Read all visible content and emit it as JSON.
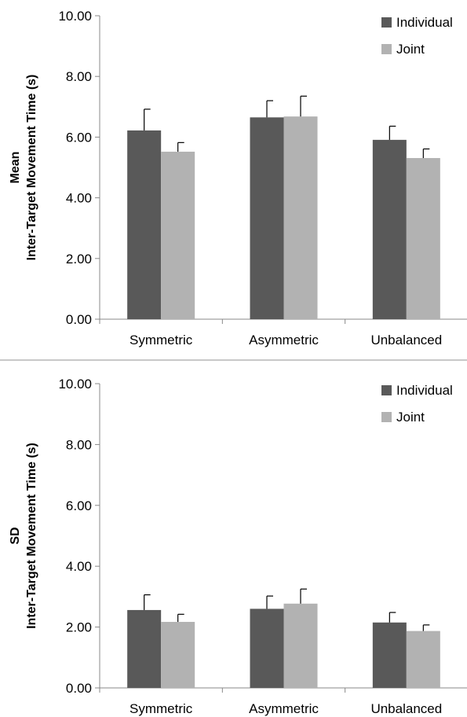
{
  "chart_data": [
    {
      "type": "bar",
      "ylabel": [
        "Mean",
        "Inter-Target Movement Time (s)"
      ],
      "categories": [
        "Symmetric",
        "Asymmetric",
        "Unbalanced"
      ],
      "ylim": [
        0,
        10
      ],
      "yticks": [
        "0.00",
        "2.00",
        "4.00",
        "6.00",
        "8.00",
        "10.00"
      ],
      "grid": false,
      "legend_position": "top-right",
      "series": [
        {
          "name": "Individual",
          "color": "#595959",
          "values": [
            6.22,
            6.65,
            5.91
          ],
          "errors": [
            0.7,
            0.55,
            0.45
          ]
        },
        {
          "name": "Joint",
          "color": "#b2b2b2",
          "values": [
            5.52,
            6.68,
            5.31
          ],
          "errors": [
            0.3,
            0.67,
            0.3
          ]
        }
      ]
    },
    {
      "type": "bar",
      "ylabel": [
        "SD",
        "Inter-Target Movement Time (s)"
      ],
      "categories": [
        "Symmetric",
        "Asymmetric",
        "Unbalanced"
      ],
      "ylim": [
        0,
        10
      ],
      "yticks": [
        "0.00",
        "2.00",
        "4.00",
        "6.00",
        "8.00",
        "10.00"
      ],
      "grid": false,
      "legend_position": "top-right",
      "series": [
        {
          "name": "Individual",
          "color": "#595959",
          "values": [
            2.56,
            2.6,
            2.15
          ],
          "errors": [
            0.5,
            0.42,
            0.33
          ]
        },
        {
          "name": "Joint",
          "color": "#b2b2b2",
          "values": [
            2.17,
            2.77,
            1.87
          ],
          "errors": [
            0.25,
            0.48,
            0.2
          ]
        }
      ]
    }
  ]
}
